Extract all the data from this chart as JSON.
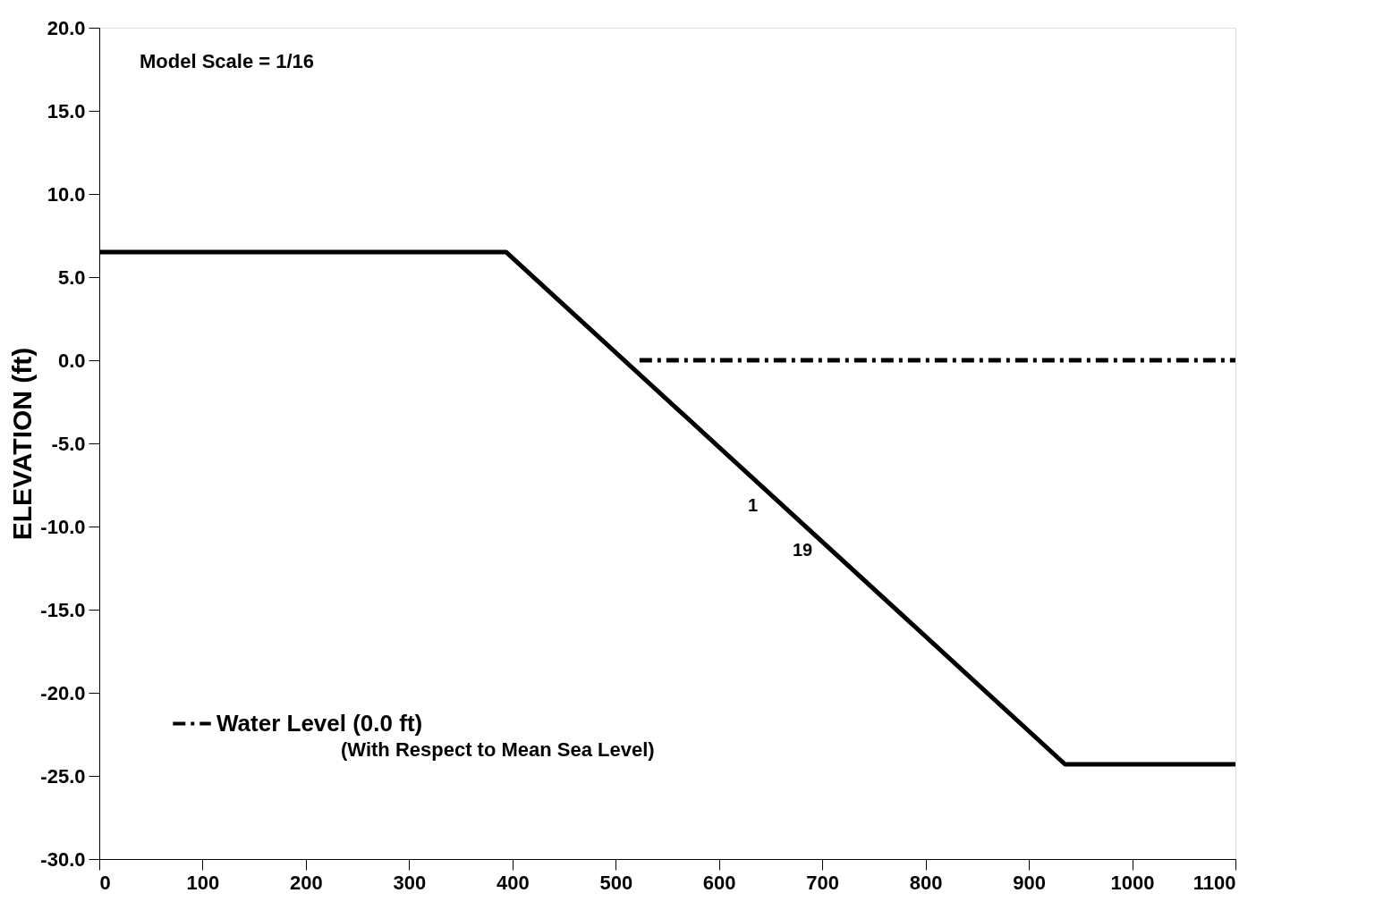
{
  "chart_data": {
    "type": "line",
    "ylabel": "ELEVATION (ft)",
    "xlim": [
      0,
      1100
    ],
    "xticks": [
      0,
      100,
      200,
      300,
      400,
      500,
      600,
      700,
      800,
      900,
      1000,
      1100
    ],
    "ylim": [
      -30,
      20
    ],
    "yticks": [
      {
        "value": 20,
        "label": "20.0"
      },
      {
        "value": 15,
        "label": "15.0"
      },
      {
        "value": 10,
        "label": "10.0"
      },
      {
        "value": 5,
        "label": "5.0"
      },
      {
        "value": 0,
        "label": "0.0"
      },
      {
        "value": -5,
        "label": "-5.0"
      },
      {
        "value": -10,
        "label": "-10.0"
      },
      {
        "value": -15,
        "label": "-15.0"
      },
      {
        "value": -20,
        "label": "-20.0"
      },
      {
        "value": -25,
        "label": "-25.0"
      },
      {
        "value": -30,
        "label": "-30.0"
      }
    ],
    "series": [
      {
        "color": "#000000",
        "line_style": "solid",
        "x": [
          0,
          394,
          935,
          1100
        ],
        "values": [
          6.5,
          6.5,
          -24.3,
          -24.3
        ]
      },
      {
        "name": "Water Level (0.0 ft)",
        "color": "#000000",
        "line_style": "dashed",
        "x": [
          523,
          1100
        ],
        "values": [
          0,
          0
        ]
      }
    ],
    "annotations": [
      "Model Scale = 1/16",
      "(With Respect to Mean Sea Level)",
      "1",
      "19"
    ],
    "legend": "bottom left",
    "grid": false
  }
}
